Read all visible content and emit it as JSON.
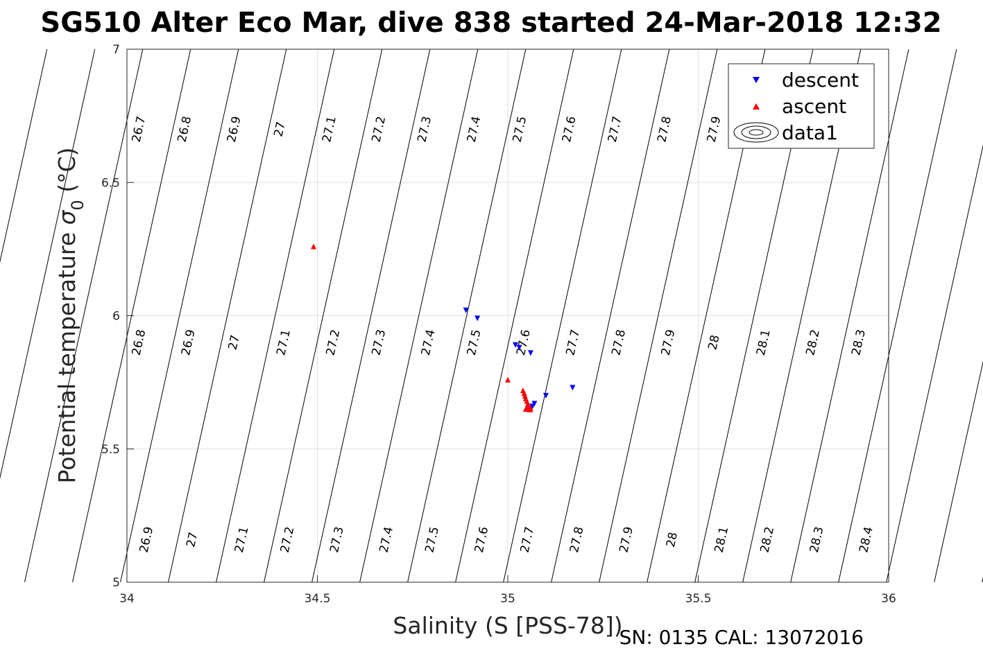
{
  "chart_data": {
    "type": "scatter",
    "title": "SG510 Alter Eco Mar, dive 838 started 24-Mar-2018 12:32",
    "xlabel": "Salinity (S [PSS-78])",
    "ylabel_main": "Potential temperature ",
    "ylabel_sigma": "σ",
    "ylabel_sub": "0",
    "ylabel_unit": " (°C)",
    "footer": "SN: 0135  CAL: 13072016",
    "xlim": [
      34,
      36
    ],
    "ylim": [
      5,
      7
    ],
    "xticks": [
      "34",
      "34.5",
      "35",
      "35.5",
      "36"
    ],
    "yticks": [
      "5",
      "5.5",
      "6",
      "6.5",
      "7"
    ],
    "grid": true,
    "legend_position": "top-right",
    "legend": [
      {
        "name": "descent",
        "marker": "triangle-down",
        "color": "#0000ff"
      },
      {
        "name": "ascent",
        "marker": "triangle-up",
        "color": "#ff0000"
      },
      {
        "name": "data1",
        "marker": "contour",
        "color": "#000000"
      }
    ],
    "series": [
      {
        "name": "descent",
        "color": "#0000ff",
        "marker": "triangle-down",
        "points": [
          [
            34.89,
            6.02
          ],
          [
            34.92,
            5.99
          ],
          [
            35.02,
            5.89
          ],
          [
            35.03,
            5.88
          ],
          [
            35.06,
            5.86
          ],
          [
            35.17,
            5.73
          ],
          [
            35.1,
            5.7
          ],
          [
            35.07,
            5.67
          ],
          [
            35.065,
            5.66
          ],
          [
            35.06,
            5.655
          ]
        ]
      },
      {
        "name": "ascent",
        "color": "#ff0000",
        "marker": "triangle-up",
        "points": [
          [
            34.49,
            6.26
          ],
          [
            35.0,
            5.76
          ],
          [
            35.04,
            5.72
          ],
          [
            35.043,
            5.71
          ],
          [
            35.045,
            5.7
          ],
          [
            35.047,
            5.69
          ],
          [
            35.05,
            5.68
          ],
          [
            35.053,
            5.67
          ],
          [
            35.055,
            5.66
          ],
          [
            35.05,
            5.655
          ],
          [
            35.047,
            5.65
          ],
          [
            35.058,
            5.648
          ],
          [
            35.06,
            5.652
          ]
        ]
      }
    ],
    "contours": {
      "levels": [
        "26.7",
        "26.8",
        "26.9",
        "27",
        "27.1",
        "27.2",
        "27.3",
        "27.4",
        "27.5",
        "27.6",
        "27.7",
        "27.8",
        "27.9",
        "28",
        "28.1",
        "28.2",
        "28.3",
        "28.4"
      ],
      "label_rows": [
        {
          "y": 6.7,
          "labels": [
            [
              34.03,
              "26.7"
            ],
            [
              34.15,
              "26.8"
            ],
            [
              34.28,
              "26.9"
            ],
            [
              34.4,
              "27"
            ],
            [
              34.53,
              "27.1"
            ],
            [
              34.66,
              "27.2"
            ],
            [
              34.78,
              "27.3"
            ],
            [
              34.91,
              "27.4"
            ],
            [
              35.03,
              "27.5"
            ],
            [
              35.16,
              "27.6"
            ],
            [
              35.28,
              "27.7"
            ],
            [
              35.41,
              "27.8"
            ],
            [
              35.54,
              "27.9"
            ]
          ]
        },
        {
          "y": 5.9,
          "labels": [
            [
              34.03,
              "26.8"
            ],
            [
              34.16,
              "26.9"
            ],
            [
              34.28,
              "27"
            ],
            [
              34.41,
              "27.1"
            ],
            [
              34.54,
              "27.2"
            ],
            [
              34.66,
              "27.3"
            ],
            [
              34.79,
              "27.4"
            ],
            [
              34.91,
              "27.5"
            ],
            [
              35.04,
              "27.6"
            ],
            [
              35.17,
              "27.7"
            ],
            [
              35.29,
              "27.8"
            ],
            [
              35.42,
              "27.9"
            ],
            [
              35.54,
              "28"
            ],
            [
              35.67,
              "28.1"
            ],
            [
              35.8,
              "28.2"
            ],
            [
              35.92,
              "28.3"
            ]
          ]
        },
        {
          "y": 5.16,
          "labels": [
            [
              34.05,
              "26.9"
            ],
            [
              34.17,
              "27"
            ],
            [
              34.3,
              "27.1"
            ],
            [
              34.42,
              "27.2"
            ],
            [
              34.55,
              "27.3"
            ],
            [
              34.68,
              "27.4"
            ],
            [
              34.8,
              "27.5"
            ],
            [
              34.93,
              "27.6"
            ],
            [
              35.05,
              "27.7"
            ],
            [
              35.18,
              "27.8"
            ],
            [
              35.31,
              "27.9"
            ],
            [
              35.43,
              "28"
            ],
            [
              35.56,
              "28.1"
            ],
            [
              35.68,
              "28.2"
            ],
            [
              35.81,
              "28.3"
            ],
            [
              35.94,
              "28.4"
            ]
          ]
        }
      ]
    }
  }
}
